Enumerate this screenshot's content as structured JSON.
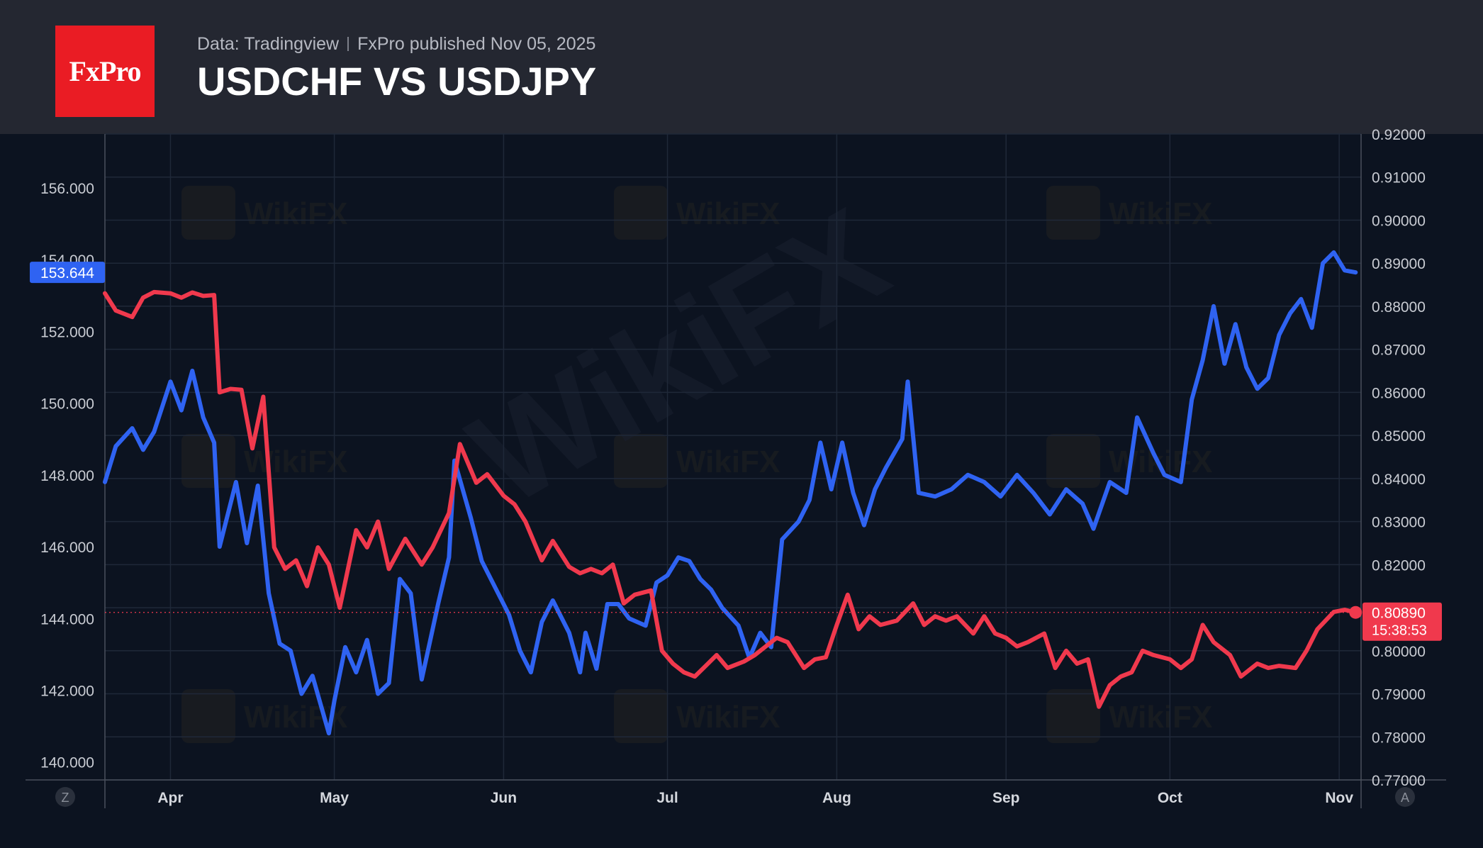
{
  "header": {
    "logo_text": "FxPro",
    "source": "Data: Tradingview",
    "published": "FxPro published Nov 05, 2025",
    "title": "USDCHF VS USDJPY"
  },
  "colors": {
    "usdjpy": "#2f63f2",
    "usdchf": "#f0394d",
    "background": "#0c1320",
    "header_bg": "#242731",
    "logo_bg": "#ea1c24"
  },
  "watermark_text": "WikiFX",
  "axis_buttons": {
    "left": "Z",
    "right": "A"
  },
  "chart_data": {
    "type": "line",
    "title": "USDCHF VS USDJPY",
    "x_labels": [
      "Apr",
      "May",
      "Jun",
      "Jul",
      "Aug",
      "Sep",
      "Oct",
      "Nov"
    ],
    "x_label_dates": [
      "2025-04-01",
      "2025-05-01",
      "2025-06-01",
      "2025-07-01",
      "2025-08-01",
      "2025-09-01",
      "2025-10-01",
      "2025-11-01"
    ],
    "x_range": [
      "2025-03-20",
      "2025-11-05"
    ],
    "grid": true,
    "left_axis": {
      "series": "USDJPY",
      "range": [
        139.5,
        157.5
      ],
      "ticks": [
        "140.000",
        "142.000",
        "144.000",
        "146.000",
        "148.000",
        "150.000",
        "152.000",
        "154.000",
        "156.000"
      ]
    },
    "right_axis": {
      "series": "USDCHF",
      "range": [
        0.77,
        0.92
      ],
      "ticks": [
        "0.77000",
        "0.78000",
        "0.79000",
        "0.80000",
        "0.81000",
        "0.82000",
        "0.83000",
        "0.84000",
        "0.85000",
        "0.86000",
        "0.87000",
        "0.88000",
        "0.89000",
        "0.90000",
        "0.91000",
        "0.92000"
      ]
    },
    "last_price_labels": {
      "usdjpy": "153.644",
      "usdchf": "0.80890",
      "countdown": "15:38:53"
    },
    "series": [
      {
        "name": "USDJPY",
        "axis": "left",
        "color": "#2f63f2",
        "points": [
          [
            "2025-03-20",
            147.8
          ],
          [
            "2025-03-22",
            148.8
          ],
          [
            "2025-03-25",
            149.3
          ],
          [
            "2025-03-27",
            148.7
          ],
          [
            "2025-03-29",
            149.2
          ],
          [
            "2025-04-01",
            150.6
          ],
          [
            "2025-04-03",
            149.8
          ],
          [
            "2025-04-05",
            150.9
          ],
          [
            "2025-04-07",
            149.6
          ],
          [
            "2025-04-09",
            148.9
          ],
          [
            "2025-04-10",
            146.0
          ],
          [
            "2025-04-13",
            147.8
          ],
          [
            "2025-04-15",
            146.1
          ],
          [
            "2025-04-17",
            147.7
          ],
          [
            "2025-04-19",
            144.7
          ],
          [
            "2025-04-21",
            143.3
          ],
          [
            "2025-04-23",
            143.1
          ],
          [
            "2025-04-25",
            141.9
          ],
          [
            "2025-04-27",
            142.4
          ],
          [
            "2025-04-30",
            140.8
          ],
          [
            "2025-05-01",
            141.7
          ],
          [
            "2025-05-03",
            143.2
          ],
          [
            "2025-05-05",
            142.5
          ],
          [
            "2025-05-07",
            143.4
          ],
          [
            "2025-05-09",
            141.9
          ],
          [
            "2025-05-11",
            142.2
          ],
          [
            "2025-05-13",
            145.1
          ],
          [
            "2025-05-15",
            144.7
          ],
          [
            "2025-05-17",
            142.3
          ],
          [
            "2025-05-20",
            144.4
          ],
          [
            "2025-05-22",
            145.7
          ],
          [
            "2025-05-23",
            148.4
          ],
          [
            "2025-05-26",
            146.8
          ],
          [
            "2025-05-28",
            145.6
          ],
          [
            "2025-05-31",
            144.7
          ],
          [
            "2025-06-02",
            144.1
          ],
          [
            "2025-06-04",
            143.1
          ],
          [
            "2025-06-06",
            142.5
          ],
          [
            "2025-06-08",
            143.9
          ],
          [
            "2025-06-10",
            144.5
          ],
          [
            "2025-06-13",
            143.6
          ],
          [
            "2025-06-15",
            142.5
          ],
          [
            "2025-06-16",
            143.6
          ],
          [
            "2025-06-18",
            142.6
          ],
          [
            "2025-06-20",
            144.4
          ],
          [
            "2025-06-22",
            144.4
          ],
          [
            "2025-06-24",
            144.0
          ],
          [
            "2025-06-27",
            143.8
          ],
          [
            "2025-06-29",
            145.0
          ],
          [
            "2025-07-01",
            145.2
          ],
          [
            "2025-07-03",
            145.7
          ],
          [
            "2025-07-05",
            145.6
          ],
          [
            "2025-07-07",
            145.1
          ],
          [
            "2025-07-09",
            144.8
          ],
          [
            "2025-07-11",
            144.3
          ],
          [
            "2025-07-14",
            143.8
          ],
          [
            "2025-07-16",
            142.9
          ],
          [
            "2025-07-18",
            143.6
          ],
          [
            "2025-07-20",
            143.2
          ],
          [
            "2025-07-22",
            146.2
          ],
          [
            "2025-07-25",
            146.7
          ],
          [
            "2025-07-27",
            147.3
          ],
          [
            "2025-07-29",
            148.9
          ],
          [
            "2025-07-31",
            147.6
          ],
          [
            "2025-08-02",
            148.9
          ],
          [
            "2025-08-04",
            147.5
          ],
          [
            "2025-08-06",
            146.6
          ],
          [
            "2025-08-08",
            147.6
          ],
          [
            "2025-08-10",
            148.2
          ],
          [
            "2025-08-13",
            149.0
          ],
          [
            "2025-08-14",
            150.6
          ],
          [
            "2025-08-16",
            147.5
          ],
          [
            "2025-08-19",
            147.4
          ],
          [
            "2025-08-22",
            147.6
          ],
          [
            "2025-08-25",
            148.0
          ],
          [
            "2025-08-28",
            147.8
          ],
          [
            "2025-08-31",
            147.4
          ],
          [
            "2025-09-03",
            148.0
          ],
          [
            "2025-09-06",
            147.5
          ],
          [
            "2025-09-09",
            146.9
          ],
          [
            "2025-09-12",
            147.6
          ],
          [
            "2025-09-15",
            147.2
          ],
          [
            "2025-09-17",
            146.5
          ],
          [
            "2025-09-20",
            147.8
          ],
          [
            "2025-09-23",
            147.5
          ],
          [
            "2025-09-25",
            149.6
          ],
          [
            "2025-09-28",
            148.6
          ],
          [
            "2025-09-30",
            148.0
          ],
          [
            "2025-10-03",
            147.8
          ],
          [
            "2025-10-05",
            150.1
          ],
          [
            "2025-10-07",
            151.2
          ],
          [
            "2025-10-09",
            152.7
          ],
          [
            "2025-10-11",
            151.1
          ],
          [
            "2025-10-13",
            152.2
          ],
          [
            "2025-10-15",
            151.0
          ],
          [
            "2025-10-17",
            150.4
          ],
          [
            "2025-10-19",
            150.7
          ],
          [
            "2025-10-21",
            151.9
          ],
          [
            "2025-10-23",
            152.5
          ],
          [
            "2025-10-25",
            152.9
          ],
          [
            "2025-10-27",
            152.1
          ],
          [
            "2025-10-29",
            153.9
          ],
          [
            "2025-10-31",
            154.2
          ],
          [
            "2025-11-02",
            153.7
          ],
          [
            "2025-11-04",
            153.644
          ]
        ]
      },
      {
        "name": "USDCHF",
        "axis": "right",
        "color": "#f0394d",
        "points": [
          [
            "2025-03-20",
            0.883
          ],
          [
            "2025-03-22",
            0.879
          ],
          [
            "2025-03-25",
            0.8775
          ],
          [
            "2025-03-27",
            0.882
          ],
          [
            "2025-03-29",
            0.8833
          ],
          [
            "2025-04-01",
            0.883
          ],
          [
            "2025-04-03",
            0.882
          ],
          [
            "2025-04-05",
            0.8832
          ],
          [
            "2025-04-07",
            0.8824
          ],
          [
            "2025-04-09",
            0.8826
          ],
          [
            "2025-04-10",
            0.86
          ],
          [
            "2025-04-12",
            0.8608
          ],
          [
            "2025-04-14",
            0.8606
          ],
          [
            "2025-04-16",
            0.847
          ],
          [
            "2025-04-18",
            0.859
          ],
          [
            "2025-04-20",
            0.824
          ],
          [
            "2025-04-22",
            0.819
          ],
          [
            "2025-04-24",
            0.821
          ],
          [
            "2025-04-26",
            0.815
          ],
          [
            "2025-04-28",
            0.824
          ],
          [
            "2025-04-30",
            0.82
          ],
          [
            "2025-05-02",
            0.81
          ],
          [
            "2025-05-05",
            0.828
          ],
          [
            "2025-05-07",
            0.824
          ],
          [
            "2025-05-09",
            0.83
          ],
          [
            "2025-05-11",
            0.819
          ],
          [
            "2025-05-14",
            0.826
          ],
          [
            "2025-05-17",
            0.82
          ],
          [
            "2025-05-19",
            0.824
          ],
          [
            "2025-05-22",
            0.832
          ],
          [
            "2025-05-24",
            0.848
          ],
          [
            "2025-05-27",
            0.839
          ],
          [
            "2025-05-29",
            0.841
          ],
          [
            "2025-06-01",
            0.836
          ],
          [
            "2025-06-03",
            0.834
          ],
          [
            "2025-06-05",
            0.83
          ],
          [
            "2025-06-08",
            0.821
          ],
          [
            "2025-06-10",
            0.8255
          ],
          [
            "2025-06-13",
            0.8195
          ],
          [
            "2025-06-15",
            0.818
          ],
          [
            "2025-06-17",
            0.819
          ],
          [
            "2025-06-19",
            0.818
          ],
          [
            "2025-06-21",
            0.82
          ],
          [
            "2025-06-23",
            0.811
          ],
          [
            "2025-06-25",
            0.813
          ],
          [
            "2025-06-28",
            0.814
          ],
          [
            "2025-06-30",
            0.8
          ],
          [
            "2025-07-02",
            0.797
          ],
          [
            "2025-07-04",
            0.795
          ],
          [
            "2025-07-06",
            0.794
          ],
          [
            "2025-07-08",
            0.7965
          ],
          [
            "2025-07-10",
            0.799
          ],
          [
            "2025-07-12",
            0.796
          ],
          [
            "2025-07-15",
            0.7975
          ],
          [
            "2025-07-17",
            0.799
          ],
          [
            "2025-07-19",
            0.801
          ],
          [
            "2025-07-21",
            0.803
          ],
          [
            "2025-07-23",
            0.802
          ],
          [
            "2025-07-26",
            0.796
          ],
          [
            "2025-07-28",
            0.798
          ],
          [
            "2025-07-30",
            0.7985
          ],
          [
            "2025-08-01",
            0.806
          ],
          [
            "2025-08-03",
            0.813
          ],
          [
            "2025-08-05",
            0.805
          ],
          [
            "2025-08-07",
            0.808
          ],
          [
            "2025-08-09",
            0.806
          ],
          [
            "2025-08-12",
            0.807
          ],
          [
            "2025-08-15",
            0.811
          ],
          [
            "2025-08-17",
            0.806
          ],
          [
            "2025-08-19",
            0.808
          ],
          [
            "2025-08-21",
            0.807
          ],
          [
            "2025-08-23",
            0.808
          ],
          [
            "2025-08-26",
            0.804
          ],
          [
            "2025-08-28",
            0.808
          ],
          [
            "2025-08-30",
            0.804
          ],
          [
            "2025-09-01",
            0.803
          ],
          [
            "2025-09-03",
            0.801
          ],
          [
            "2025-09-05",
            0.802
          ],
          [
            "2025-09-08",
            0.804
          ],
          [
            "2025-09-10",
            0.796
          ],
          [
            "2025-09-12",
            0.8
          ],
          [
            "2025-09-14",
            0.797
          ],
          [
            "2025-09-16",
            0.798
          ],
          [
            "2025-09-18",
            0.787
          ],
          [
            "2025-09-20",
            0.792
          ],
          [
            "2025-09-22",
            0.794
          ],
          [
            "2025-09-24",
            0.795
          ],
          [
            "2025-09-26",
            0.8
          ],
          [
            "2025-09-28",
            0.799
          ],
          [
            "2025-10-01",
            0.798
          ],
          [
            "2025-10-03",
            0.796
          ],
          [
            "2025-10-05",
            0.798
          ],
          [
            "2025-10-07",
            0.806
          ],
          [
            "2025-10-09",
            0.802
          ],
          [
            "2025-10-12",
            0.799
          ],
          [
            "2025-10-14",
            0.794
          ],
          [
            "2025-10-17",
            0.797
          ],
          [
            "2025-10-19",
            0.796
          ],
          [
            "2025-10-21",
            0.7965
          ],
          [
            "2025-10-24",
            0.796
          ],
          [
            "2025-10-26",
            0.8
          ],
          [
            "2025-10-28",
            0.805
          ],
          [
            "2025-10-31",
            0.809
          ],
          [
            "2025-11-02",
            0.8095
          ],
          [
            "2025-11-04",
            0.8089
          ]
        ]
      }
    ]
  }
}
